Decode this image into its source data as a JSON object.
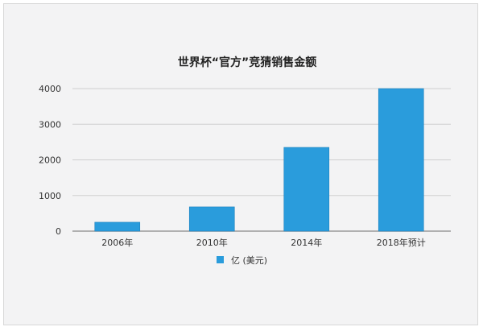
{
  "chart_data": {
    "type": "bar",
    "title": "世界杯“官方”竞猜销售金额",
    "categories": [
      "2006年",
      "2010年",
      "2014年",
      "2018年预计"
    ],
    "series": [
      {
        "name": "亿 (美元)",
        "values": [
          250,
          680,
          2350,
          4000
        ],
        "color": "#2a9cdc"
      }
    ],
    "xlabel": "",
    "ylabel": "",
    "ylim": [
      0,
      4000
    ],
    "yticks": [
      0,
      1000,
      2000,
      3000,
      4000
    ],
    "grid": true,
    "legend_position": "bottom-left"
  }
}
